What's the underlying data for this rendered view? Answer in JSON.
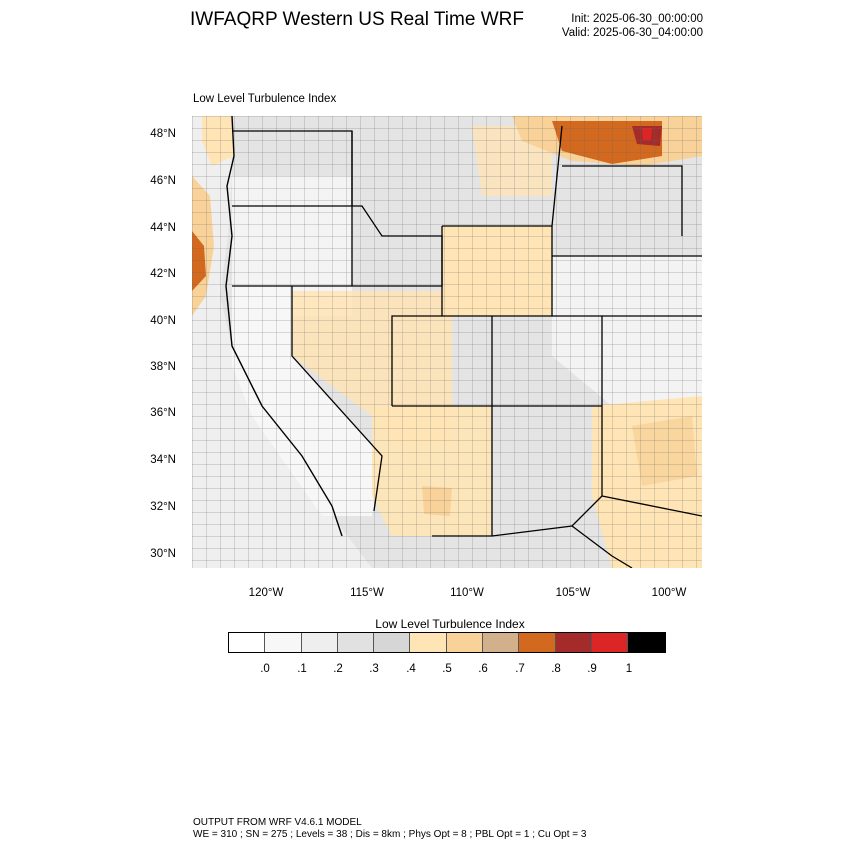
{
  "header": {
    "title": "IWFAQRP Western US Real Time WRF",
    "init": "Init: 2025-06-30_00:00:00",
    "valid": "Valid: 2025-06-30_04:00:00"
  },
  "map": {
    "label": "Low Level Turbulence Index",
    "lat_labels": [
      "48°N",
      "46°N",
      "44°N",
      "42°N",
      "40°N",
      "38°N",
      "36°N",
      "34°N",
      "32°N",
      "30°N"
    ],
    "lon_labels": [
      "120°W",
      "115°W",
      "110°W",
      "105°W",
      "100°W"
    ]
  },
  "colorbar": {
    "title": "Low Level Turbulence Index",
    "colors": [
      "#ffffff",
      "#f7f7f7",
      "#eeeeee",
      "#e1e1e1",
      "#d6d6d6",
      "#ffe4b5",
      "#f9d29a",
      "#d2b08c",
      "#d2691e",
      "#a52a2a",
      "#dc2626",
      "#000000"
    ],
    "ticks": [
      ".0",
      ".1",
      ".2",
      ".3",
      ".4",
      ".5",
      ".6",
      ".7",
      ".8",
      ".9",
      "1"
    ]
  },
  "footer": {
    "line1": "OUTPUT FROM WRF V4.6.1 MODEL",
    "line2": "WE = 310 ; SN = 275 ; Levels = 38 ; Dis = 8km ; Phys Opt = 8 ; PBL Opt = 1 ; Cu Opt = 3"
  }
}
